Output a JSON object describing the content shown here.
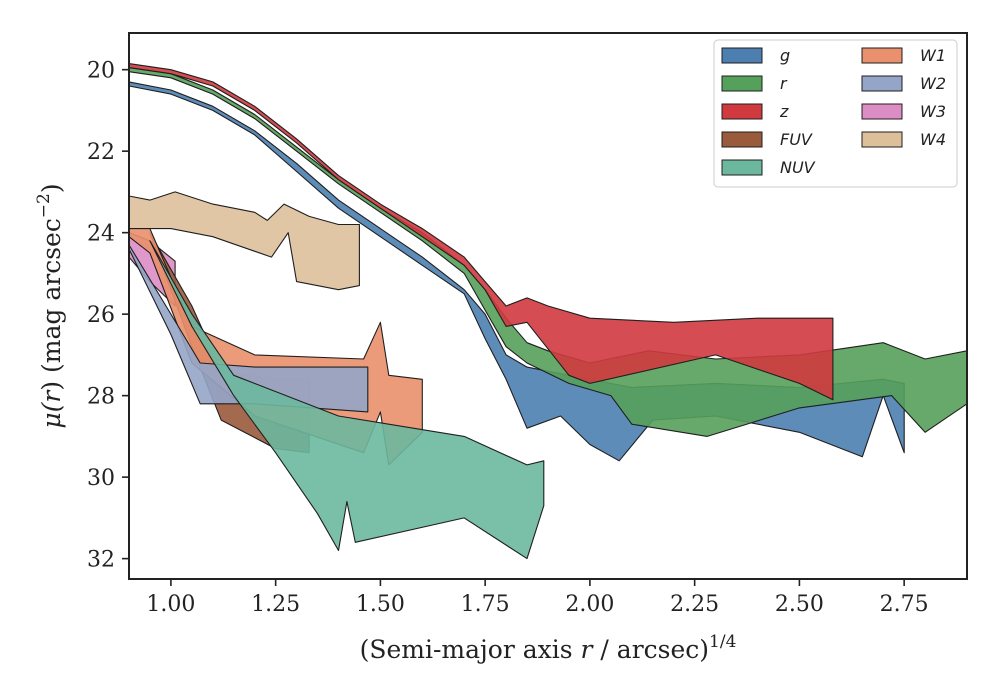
{
  "chart_data": {
    "type": "area",
    "xlabel_prefix": "(Semi-major axis ",
    "xlabel_var": "r",
    "xlabel_suffix": " / arcsec)",
    "xlabel_exp": "1/4",
    "ylabel_prefix": "μ(",
    "ylabel_var": "r",
    "ylabel_mid": ") (mag arcsec",
    "ylabel_exp": "−2",
    "ylabel_end": ")",
    "xlim": [
      0.9,
      2.9
    ],
    "ylim": [
      32.5,
      19.1
    ],
    "y_inverted": true,
    "x_ticks": [
      "1.00",
      "1.25",
      "1.50",
      "1.75",
      "2.00",
      "2.25",
      "2.50",
      "2.75"
    ],
    "x_tick_values": [
      1.0,
      1.25,
      1.5,
      1.75,
      2.0,
      2.25,
      2.5,
      2.75
    ],
    "y_ticks": [
      "20",
      "22",
      "24",
      "26",
      "28",
      "30",
      "32"
    ],
    "y_tick_values": [
      20,
      22,
      24,
      26,
      28,
      30,
      32
    ],
    "grid": false,
    "legend_position": "top-right",
    "legend_columns": 2,
    "draw_order": [
      "W4",
      "W3",
      "FUV",
      "W1",
      "W2",
      "NUV",
      "g",
      "r",
      "z"
    ],
    "series": [
      {
        "name": "g",
        "color": "#4c7fb0",
        "upper": [
          [
            0.9,
            20.3
          ],
          [
            1.0,
            20.5
          ],
          [
            1.1,
            20.9
          ],
          [
            1.2,
            21.5
          ],
          [
            1.3,
            22.3
          ],
          [
            1.4,
            23.2
          ],
          [
            1.5,
            23.9
          ],
          [
            1.6,
            24.6
          ],
          [
            1.7,
            25.4
          ],
          [
            1.75,
            26.0
          ],
          [
            1.8,
            27.0
          ],
          [
            1.85,
            27.3
          ],
          [
            1.9,
            27.4
          ],
          [
            2.0,
            27.6
          ],
          [
            2.1,
            27.8
          ],
          [
            2.3,
            27.7
          ],
          [
            2.5,
            27.8
          ],
          [
            2.7,
            27.6
          ],
          [
            2.75,
            27.7
          ]
        ],
        "lower": [
          [
            2.75,
            29.4
          ],
          [
            2.7,
            28.0
          ],
          [
            2.65,
            29.5
          ],
          [
            2.5,
            28.9
          ],
          [
            2.3,
            28.5
          ],
          [
            2.15,
            28.6
          ],
          [
            2.07,
            29.6
          ],
          [
            2.0,
            29.2
          ],
          [
            1.93,
            28.5
          ],
          [
            1.85,
            28.8
          ],
          [
            1.8,
            27.6
          ],
          [
            1.75,
            26.6
          ],
          [
            1.7,
            25.5
          ],
          [
            1.6,
            24.8
          ],
          [
            1.5,
            24.1
          ],
          [
            1.4,
            23.4
          ],
          [
            1.3,
            22.5
          ],
          [
            1.2,
            21.6
          ],
          [
            1.1,
            21.0
          ],
          [
            1.0,
            20.6
          ],
          [
            0.9,
            20.4
          ]
        ]
      },
      {
        "name": "r",
        "color": "#55a05a",
        "upper": [
          [
            0.9,
            19.95
          ],
          [
            1.0,
            20.1
          ],
          [
            1.1,
            20.5
          ],
          [
            1.2,
            21.1
          ],
          [
            1.3,
            21.9
          ],
          [
            1.4,
            22.7
          ],
          [
            1.5,
            23.4
          ],
          [
            1.6,
            24.0
          ],
          [
            1.7,
            24.8
          ],
          [
            1.75,
            25.4
          ],
          [
            1.8,
            26.1
          ],
          [
            1.85,
            26.7
          ],
          [
            1.9,
            26.9
          ],
          [
            2.0,
            27.2
          ],
          [
            2.14,
            26.9
          ],
          [
            2.3,
            27.1
          ],
          [
            2.5,
            27.0
          ],
          [
            2.7,
            26.7
          ],
          [
            2.8,
            27.1
          ],
          [
            2.9,
            26.9
          ]
        ],
        "lower": [
          [
            2.9,
            28.2
          ],
          [
            2.8,
            28.9
          ],
          [
            2.72,
            28.0
          ],
          [
            2.5,
            28.3
          ],
          [
            2.28,
            29.0
          ],
          [
            2.1,
            28.7
          ],
          [
            2.05,
            28.0
          ],
          [
            1.95,
            27.7
          ],
          [
            1.85,
            27.2
          ],
          [
            1.8,
            26.8
          ],
          [
            1.75,
            25.9
          ],
          [
            1.7,
            25.0
          ],
          [
            1.6,
            24.2
          ],
          [
            1.5,
            23.5
          ],
          [
            1.4,
            22.8
          ],
          [
            1.3,
            22.0
          ],
          [
            1.2,
            21.2
          ],
          [
            1.1,
            20.6
          ],
          [
            1.0,
            20.2
          ],
          [
            0.9,
            20.05
          ]
        ]
      },
      {
        "name": "z",
        "color": "#d03a3f",
        "upper": [
          [
            0.9,
            19.85
          ],
          [
            1.0,
            20.0
          ],
          [
            1.1,
            20.3
          ],
          [
            1.2,
            20.9
          ],
          [
            1.3,
            21.7
          ],
          [
            1.4,
            22.6
          ],
          [
            1.5,
            23.3
          ],
          [
            1.6,
            23.9
          ],
          [
            1.7,
            24.6
          ],
          [
            1.75,
            25.2
          ],
          [
            1.8,
            25.8
          ],
          [
            1.85,
            25.6
          ],
          [
            1.9,
            25.8
          ],
          [
            2.0,
            26.1
          ],
          [
            2.2,
            26.2
          ],
          [
            2.4,
            26.1
          ],
          [
            2.58,
            26.1
          ]
        ],
        "lower": [
          [
            2.58,
            28.1
          ],
          [
            2.5,
            27.7
          ],
          [
            2.3,
            27.0
          ],
          [
            2.0,
            27.7
          ],
          [
            1.95,
            27.5
          ],
          [
            1.85,
            26.2
          ],
          [
            1.8,
            26.3
          ],
          [
            1.75,
            25.4
          ],
          [
            1.7,
            24.8
          ],
          [
            1.6,
            24.1
          ],
          [
            1.5,
            23.4
          ],
          [
            1.4,
            22.7
          ],
          [
            1.3,
            21.8
          ],
          [
            1.2,
            21.0
          ],
          [
            1.1,
            20.4
          ],
          [
            1.0,
            20.1
          ],
          [
            0.9,
            19.95
          ]
        ]
      },
      {
        "name": "FUV",
        "color": "#9a5a3c",
        "upper": [
          [
            0.95,
            24.0
          ],
          [
            1.05,
            25.8
          ],
          [
            1.12,
            27.4
          ],
          [
            1.25,
            27.6
          ],
          [
            1.33,
            27.6
          ]
        ],
        "lower": [
          [
            1.33,
            29.4
          ],
          [
            1.25,
            29.3
          ],
          [
            1.12,
            28.6
          ],
          [
            1.05,
            26.8
          ],
          [
            0.95,
            24.0
          ]
        ]
      },
      {
        "name": "NUV",
        "color": "#6cb89f",
        "upper": [
          [
            0.95,
            24.2
          ],
          [
            1.05,
            26.0
          ],
          [
            1.15,
            27.5
          ],
          [
            1.4,
            28.5
          ],
          [
            1.7,
            29.0
          ],
          [
            1.85,
            29.7
          ],
          [
            1.89,
            29.6
          ]
        ],
        "lower": [
          [
            1.89,
            30.7
          ],
          [
            1.85,
            32.0
          ],
          [
            1.7,
            31.0
          ],
          [
            1.44,
            31.6
          ],
          [
            1.42,
            30.6
          ],
          [
            1.4,
            31.8
          ],
          [
            1.35,
            30.9
          ],
          [
            1.25,
            29.4
          ],
          [
            1.15,
            28.0
          ],
          [
            1.05,
            26.3
          ],
          [
            0.95,
            24.2
          ]
        ]
      },
      {
        "name": "W1",
        "color": "#e9906c",
        "upper": [
          [
            0.9,
            23.9
          ],
          [
            0.95,
            23.9
          ],
          [
            1.05,
            26.3
          ],
          [
            1.2,
            27.0
          ],
          [
            1.46,
            27.1
          ],
          [
            1.5,
            26.2
          ],
          [
            1.52,
            27.5
          ],
          [
            1.6,
            27.6
          ]
        ],
        "lower": [
          [
            1.6,
            28.9
          ],
          [
            1.52,
            29.7
          ],
          [
            1.5,
            28.4
          ],
          [
            1.46,
            29.4
          ],
          [
            1.2,
            28.5
          ],
          [
            1.05,
            27.2
          ],
          [
            0.95,
            24.5
          ],
          [
            0.9,
            24.1
          ]
        ]
      },
      {
        "name": "W2",
        "color": "#95a5c8",
        "upper": [
          [
            0.9,
            24.3
          ],
          [
            1.0,
            26.0
          ],
          [
            1.07,
            27.2
          ],
          [
            1.2,
            27.3
          ],
          [
            1.47,
            27.3
          ]
        ],
        "lower": [
          [
            1.47,
            28.4
          ],
          [
            1.2,
            28.2
          ],
          [
            1.07,
            28.2
          ],
          [
            1.0,
            26.5
          ],
          [
            0.9,
            24.4
          ]
        ]
      },
      {
        "name": "W3",
        "color": "#dc8dc3",
        "upper": [
          [
            0.9,
            24.0
          ],
          [
            0.95,
            24.2
          ],
          [
            1.01,
            24.7
          ]
        ],
        "lower": [
          [
            1.01,
            25.8
          ],
          [
            0.95,
            25.2
          ],
          [
            0.9,
            24.6
          ]
        ]
      },
      {
        "name": "W4",
        "color": "#ddc09a",
        "upper": [
          [
            0.9,
            23.1
          ],
          [
            0.95,
            23.2
          ],
          [
            1.01,
            23.0
          ],
          [
            1.1,
            23.3
          ],
          [
            1.2,
            23.5
          ],
          [
            1.23,
            23.7
          ],
          [
            1.27,
            23.3
          ],
          [
            1.33,
            23.6
          ],
          [
            1.4,
            23.8
          ],
          [
            1.45,
            23.8
          ]
        ],
        "lower": [
          [
            1.45,
            25.3
          ],
          [
            1.4,
            25.4
          ],
          [
            1.3,
            25.2
          ],
          [
            1.28,
            24.0
          ],
          [
            1.24,
            24.6
          ],
          [
            1.1,
            24.1
          ],
          [
            1.0,
            23.9
          ],
          [
            0.9,
            23.9
          ]
        ]
      }
    ]
  }
}
